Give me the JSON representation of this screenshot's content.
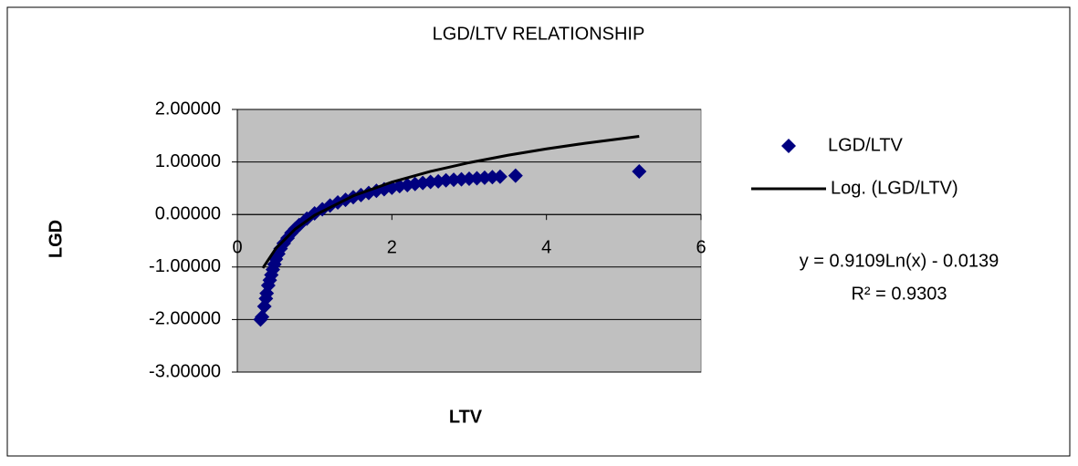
{
  "chart_data": {
    "type": "scatter",
    "title": "LGD/LTV RELATIONSHIP",
    "x_label": "LTV",
    "y_label": "LGD",
    "xlim": [
      0,
      6
    ],
    "xticks": [
      0,
      2,
      4,
      6
    ],
    "ylim": [
      -3,
      2
    ],
    "yticks": [
      {
        "value": -3,
        "label": "-3.00000"
      },
      {
        "value": -2,
        "label": "-2.00000"
      },
      {
        "value": -1,
        "label": "-1.00000"
      },
      {
        "value": 0,
        "label": "0.00000"
      },
      {
        "value": 1,
        "label": "1.00000"
      },
      {
        "value": 2,
        "label": "2.00000"
      }
    ],
    "grid": true,
    "legend": "right",
    "series": [
      {
        "name": "LGD/LTV",
        "color": "#000080",
        "marker": "diamond",
        "x": [
          0.3,
          0.32,
          0.35,
          0.37,
          0.38,
          0.4,
          0.42,
          0.44,
          0.46,
          0.48,
          0.5,
          0.53,
          0.56,
          0.6,
          0.65,
          0.7,
          0.75,
          0.8,
          0.9,
          1.0,
          1.1,
          1.2,
          1.3,
          1.4,
          1.5,
          1.6,
          1.7,
          1.8,
          1.9,
          2.0,
          2.1,
          2.2,
          2.3,
          2.4,
          2.5,
          2.6,
          2.7,
          2.8,
          2.9,
          3.0,
          3.1,
          3.2,
          3.3,
          3.4,
          3.6,
          5.2
        ],
        "values": [
          -2.0,
          -1.95,
          -1.75,
          -1.6,
          -1.5,
          -1.35,
          -1.25,
          -1.15,
          -1.05,
          -0.95,
          -0.85,
          -0.75,
          -0.65,
          -0.55,
          -0.45,
          -0.35,
          -0.27,
          -0.2,
          -0.08,
          0.02,
          0.1,
          0.17,
          0.23,
          0.28,
          0.33,
          0.37,
          0.41,
          0.45,
          0.48,
          0.51,
          0.54,
          0.56,
          0.58,
          0.6,
          0.62,
          0.63,
          0.65,
          0.66,
          0.67,
          0.68,
          0.69,
          0.7,
          0.71,
          0.72,
          0.74,
          0.82
        ]
      },
      {
        "name": "Log. (LGD/LTV)",
        "color": "#000000",
        "marker": "line",
        "x": [
          0.33,
          0.5,
          0.75,
          1,
          1.5,
          2,
          2.5,
          3,
          3.5,
          4,
          4.5,
          5.2
        ],
        "values": [
          -1.02,
          -0.645,
          -0.276,
          -0.014,
          0.355,
          0.617,
          0.821,
          0.987,
          1.127,
          1.249,
          1.356,
          1.488
        ]
      }
    ],
    "annotations": [
      "y = 0.9109Ln(x) - 0.0139",
      "R² = 0.9303"
    ]
  }
}
